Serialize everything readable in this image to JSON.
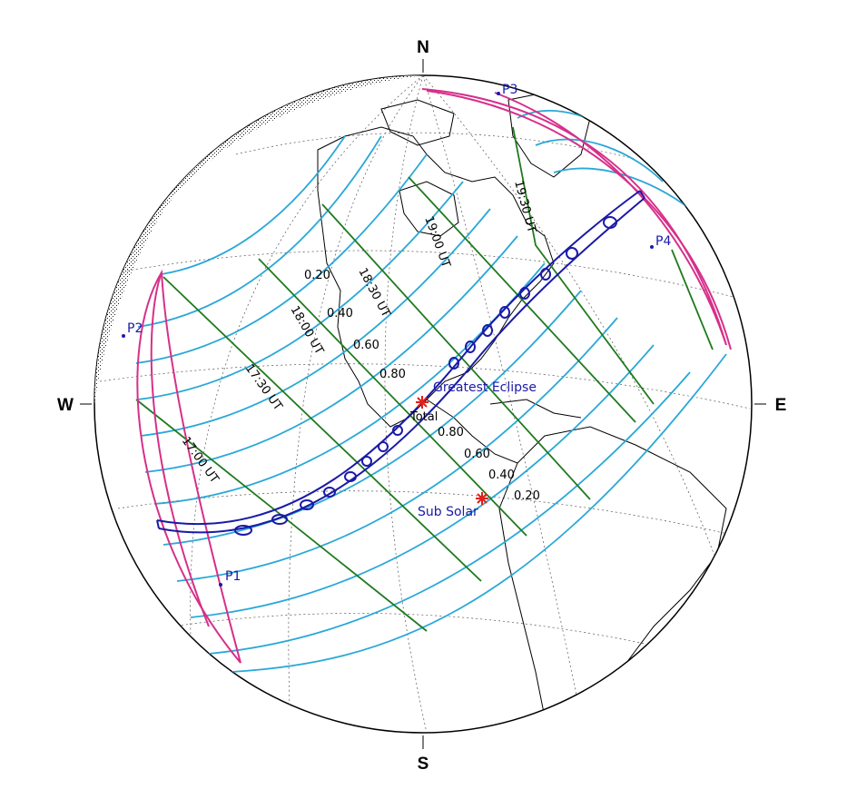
{
  "cardinals": {
    "north": "N",
    "south": "S",
    "west": "W",
    "east": "E"
  },
  "contact_points": {
    "p1": "P1",
    "p2": "P2",
    "p3": "P3",
    "p4": "P4"
  },
  "markers": {
    "greatest_eclipse": "Greatest Eclipse",
    "eclipse_type": "Total",
    "sub_solar": "Sub Solar"
  },
  "magnitude_labels": {
    "north": [
      "0.20",
      "0.40",
      "0.60",
      "0.80"
    ],
    "south": [
      "0.80",
      "0.60",
      "0.40",
      "0.20"
    ]
  },
  "time_labels": [
    "17:00 UT",
    "17:30 UT",
    "18:00 UT",
    "18:30 UT",
    "19:00 UT",
    "19:30 UT"
  ],
  "colors": {
    "magnitude_lines": "#29a8d8",
    "time_lines": "#1f7a1f",
    "path_of_totality": "#1a1aa8",
    "penumbra_limits": "#d6308a",
    "markers": "#e0201a",
    "grid": "#555555",
    "coastlines": "#000000"
  }
}
